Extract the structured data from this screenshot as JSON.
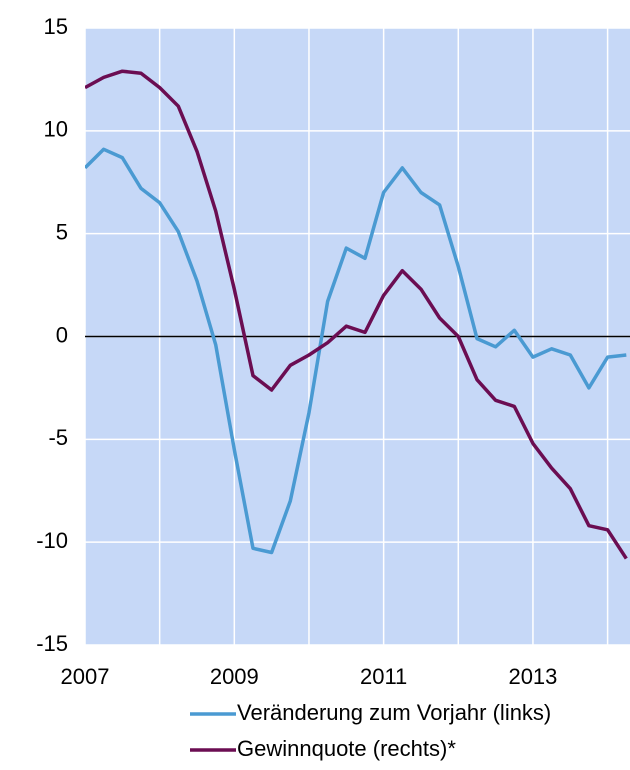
{
  "chart_data": {
    "type": "line",
    "x": [
      2007,
      2007.25,
      2007.5,
      2007.75,
      2008,
      2008.25,
      2008.5,
      2008.75,
      2009,
      2009.25,
      2009.5,
      2009.75,
      2010,
      2010.25,
      2010.5,
      2010.75,
      2011,
      2011.25,
      2011.5,
      2011.75,
      2012,
      2012.25,
      2012.5,
      2012.75,
      2013,
      2013.25,
      2013.5,
      2013.75,
      2014,
      2014.25
    ],
    "series": [
      {
        "name": "Veränderung zum Vorjahr (links)",
        "color": "#4a9ad2",
        "values": [
          8.2,
          9.1,
          8.7,
          7.2,
          6.5,
          5.1,
          2.7,
          -0.4,
          -5.5,
          -10.3,
          -10.5,
          -8.0,
          -3.7,
          1.7,
          4.3,
          3.8,
          7.0,
          8.2,
          7.0,
          6.4,
          3.4,
          -0.1,
          -0.5,
          0.3,
          -1.0,
          -0.6,
          -0.9,
          -2.5,
          -1.0,
          -0.9
        ]
      },
      {
        "name": "Gewinnquote (rechts)*",
        "color": "#6b0d52",
        "values": [
          12.1,
          12.6,
          12.9,
          12.8,
          12.1,
          11.2,
          9.0,
          6.1,
          2.3,
          -1.9,
          -2.6,
          -1.4,
          -0.9,
          -0.3,
          0.5,
          0.2,
          2.0,
          3.2,
          2.3,
          0.9,
          0.0,
          -2.1,
          -3.1,
          -3.4,
          -5.2,
          -6.4,
          -7.4,
          -9.2,
          -9.4,
          -10.8
        ]
      }
    ],
    "xlim": [
      2007,
      2014.3
    ],
    "xticks": [
      2007,
      2008,
      2009,
      2010,
      2011,
      2012,
      2013,
      2014
    ],
    "xtick_label_every": 2,
    "ylim": [
      -15,
      15
    ],
    "yticks": [
      -15,
      -10,
      -5,
      0,
      5,
      10,
      15
    ],
    "grid": true,
    "background": "#c6d8f7",
    "zero_line": true
  }
}
